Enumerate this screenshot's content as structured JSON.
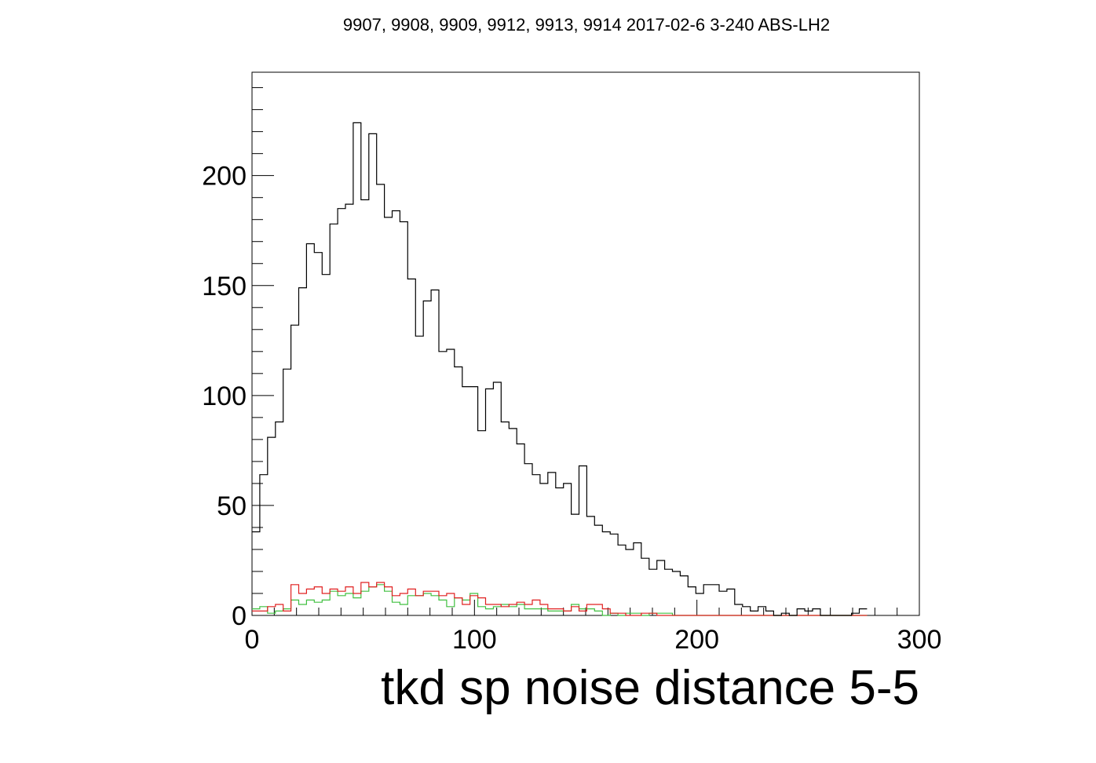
{
  "chart_data": {
    "type": "histogram",
    "title": "9907, 9908, 9909, 9912, 9913, 9914 2017-02-6 3-240 ABS-LH2",
    "xlabel": "tkd sp noise distance 5-5",
    "ylabel": "",
    "xlim": [
      0,
      300
    ],
    "ylim": [
      0,
      247
    ],
    "x_ticks": [
      "0",
      "100",
      "200",
      "300"
    ],
    "y_ticks": [
      "0",
      "50",
      "100",
      "150",
      "200"
    ],
    "y_tick_values": [
      0,
      50,
      100,
      150,
      200
    ],
    "x_tick_values": [
      0,
      100,
      200,
      300
    ],
    "bin_width": 3.5,
    "grid": false,
    "series": [
      {
        "color": "#000000",
        "values": [
          38,
          64,
          81,
          88,
          112,
          132,
          149,
          169,
          165,
          155,
          178,
          185,
          187,
          224,
          189,
          219,
          196,
          181,
          184,
          179,
          153,
          127,
          143,
          148,
          120,
          121,
          113,
          104,
          104,
          84,
          103,
          106,
          88,
          85,
          78,
          69,
          64,
          60,
          65,
          58,
          60,
          46,
          68,
          45,
          41,
          38,
          37,
          32,
          30,
          33,
          26,
          21,
          25,
          21,
          20,
          18,
          13,
          10,
          14,
          14,
          11,
          12,
          5,
          4,
          2,
          4,
          2,
          0,
          1,
          0,
          3,
          2,
          3,
          0,
          0,
          0,
          0,
          1,
          3
        ]
      },
      {
        "color": "#e02020",
        "values": [
          2,
          2,
          4,
          5,
          2,
          14,
          10,
          12,
          13,
          10,
          12,
          11,
          13,
          10,
          15,
          13,
          15,
          13,
          9,
          10,
          12,
          9,
          11,
          11,
          9,
          10,
          8,
          5,
          9,
          8,
          5,
          5,
          4,
          5,
          6,
          5,
          7,
          5,
          3,
          3,
          2,
          4,
          2,
          5,
          5,
          3,
          1,
          1,
          0,
          0,
          1,
          1,
          0,
          0,
          0,
          0,
          0,
          0,
          0,
          0,
          0,
          0,
          0,
          0,
          0,
          0,
          0,
          0,
          0,
          0,
          0,
          0,
          0,
          0,
          0,
          0,
          0,
          0,
          0
        ]
      },
      {
        "color": "#40c040",
        "values": [
          3,
          4,
          1,
          2,
          3,
          7,
          5,
          7,
          6,
          7,
          11,
          9,
          10,
          8,
          11,
          13,
          14,
          11,
          6,
          5,
          9,
          9,
          10,
          9,
          7,
          4,
          8,
          7,
          10,
          4,
          3,
          4,
          5,
          4,
          5,
          3,
          3,
          3,
          2,
          2,
          2,
          5,
          3,
          3,
          2,
          0,
          1,
          0,
          1,
          1,
          0,
          1,
          1,
          1,
          0,
          0,
          0,
          0,
          0,
          0,
          0,
          0,
          0,
          0,
          0,
          0,
          0,
          0,
          0,
          0,
          0,
          0,
          0,
          0,
          0,
          0,
          0,
          0,
          0
        ]
      }
    ]
  }
}
